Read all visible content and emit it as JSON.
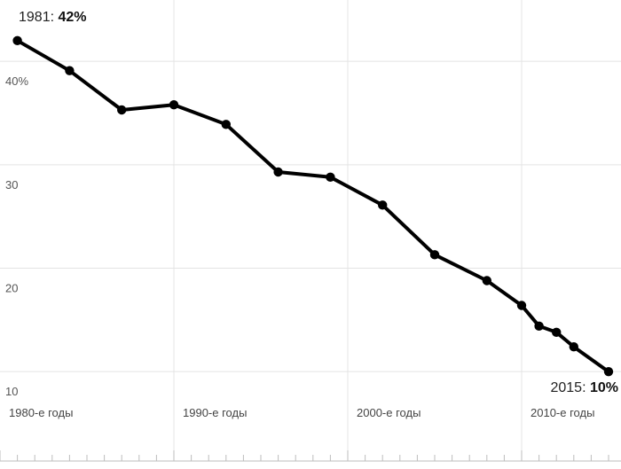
{
  "chart_data": {
    "type": "line",
    "x": [
      1981,
      1984,
      1987,
      1990,
      1993,
      1996,
      1999,
      2002,
      2005,
      2008,
      2010,
      2011,
      2012,
      2013,
      2015
    ],
    "series": [
      {
        "values": [
          42,
          39.1,
          35.3,
          35.8,
          33.9,
          29.3,
          28.8,
          26.1,
          21.3,
          18.8,
          16.4,
          14.4,
          13.8,
          12.4,
          10
        ]
      }
    ],
    "xlim": [
      1980,
      2015
    ],
    "ylim": [
      6.5,
      45.5
    ],
    "yticks": [
      10,
      20,
      30,
      40
    ],
    "ytick_labels": [
      "10",
      "20",
      "30",
      "40%"
    ],
    "xticks": [
      1980,
      1990,
      2000,
      2010
    ],
    "xtick_labels": [
      "1980-е годы",
      "1990-е годы",
      "2000-е годы",
      "2010-е годы"
    ],
    "grid": true,
    "line_color": "#000000",
    "grid_color": "#e4e4e4",
    "annotations": {
      "start": {
        "label": "1981: ",
        "value": "42%"
      },
      "end": {
        "label": "2015: ",
        "value": "10%"
      }
    }
  }
}
